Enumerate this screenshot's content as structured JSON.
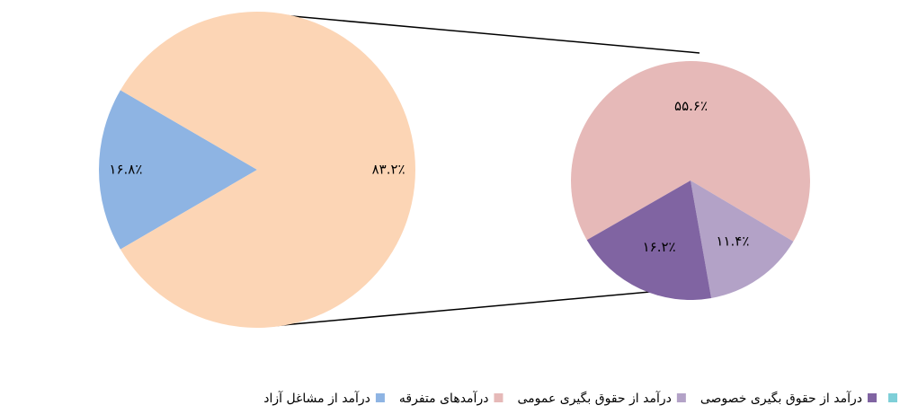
{
  "chart_data": [
    {
      "type": "pie",
      "values": [
        16.8,
        83.2
      ],
      "value_labels": [
        "۱۶.۸٪",
        "۸۳.۲٪"
      ],
      "colors": [
        "#8eb4e3",
        "#fcd5b5"
      ]
    },
    {
      "type": "pie",
      "values": [
        55.6,
        11.4,
        16.2
      ],
      "value_labels": [
        "۵۵.۶٪",
        "۱۱.۴٪",
        "۱۶.۲٪"
      ],
      "colors": [
        "#e6b9b8",
        "#b3a2c7",
        "#8064a2"
      ]
    }
  ],
  "legend": [
    {
      "color": "#7ecfd8"
    },
    {
      "name": "درآمد از حقوق بگیری خصوصی",
      "color": "#8064a2"
    },
    {
      "name": "درآمد از حقوق بگیری عمومی",
      "color": "#b3a2c7"
    },
    {
      "name": "درآمدهای متفرقه",
      "color": "#e6b9b8"
    },
    {
      "name": "درآمد از مشاغل آزاد",
      "color": "#8eb4e3"
    }
  ]
}
